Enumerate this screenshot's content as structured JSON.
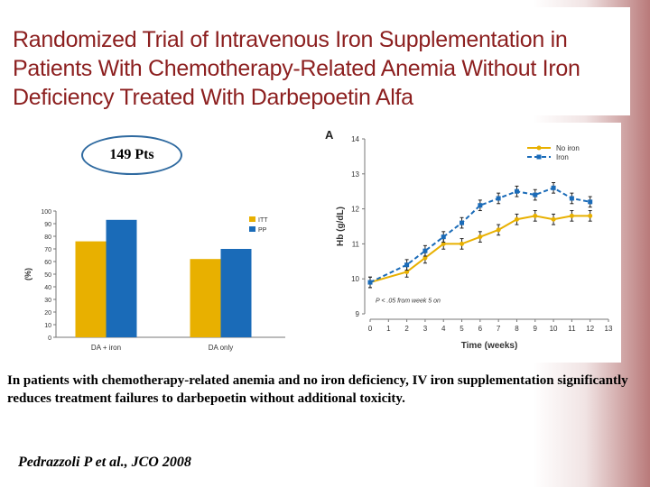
{
  "title": {
    "lines": [
      "Randomized Trial of Intravenous Iron Supplementation in",
      "Patients With Chemotherapy-Related Anemia Without Iron",
      "Deficiency Treated With Darbepoetin Alfa"
    ]
  },
  "badge": {
    "text": "149 Pts"
  },
  "caption": "In patients with chemotherapy-related anemia and no iron deficiency, IV iron supplementation significantly reduces treatment failures to darbepoetin without additional toxicity.",
  "citation": "Pedrazzoli P et al., JCO 2008",
  "colors": {
    "gold": "#e8b000",
    "blue": "#1a6bb8",
    "title": "#8c1f1f"
  },
  "chart_data": [
    {
      "type": "bar",
      "categories": [
        "DA + iron",
        "DA only"
      ],
      "series": [
        {
          "name": "ITT",
          "values": [
            76,
            62
          ]
        },
        {
          "name": "PP",
          "values": [
            93,
            70
          ]
        }
      ],
      "ylabel": "(%)",
      "ylim": [
        0,
        100
      ],
      "yticks": [
        0,
        10,
        20,
        30,
        40,
        50,
        60,
        70,
        80,
        90,
        100
      ],
      "legend": "top-right"
    },
    {
      "type": "line",
      "panel_label": "A",
      "x": [
        0,
        2,
        3,
        4,
        5,
        6,
        7,
        8,
        9,
        10,
        11,
        12
      ],
      "series": [
        {
          "name": "No iron",
          "values": [
            9.9,
            10.2,
            10.6,
            11.0,
            11.0,
            11.2,
            11.4,
            11.7,
            11.8,
            11.7,
            11.8,
            11.8
          ],
          "err": 0.15
        },
        {
          "name": "Iron",
          "values": [
            9.9,
            10.4,
            10.8,
            11.2,
            11.6,
            12.1,
            12.3,
            12.5,
            12.4,
            12.6,
            12.3,
            12.2
          ],
          "err": 0.15
        }
      ],
      "xlabel": "Time (weeks)",
      "ylabel": "Hb (g/dL)",
      "xticks": [
        0,
        1,
        2,
        3,
        4,
        5,
        6,
        7,
        8,
        9,
        10,
        11,
        12,
        13
      ],
      "yticks": [
        9,
        10,
        11,
        12,
        13,
        14
      ],
      "xlim": [
        0,
        13
      ],
      "ylim": [
        9,
        14
      ],
      "annotation": "P < .05 from week 5 on",
      "legend": "top-right"
    }
  ]
}
